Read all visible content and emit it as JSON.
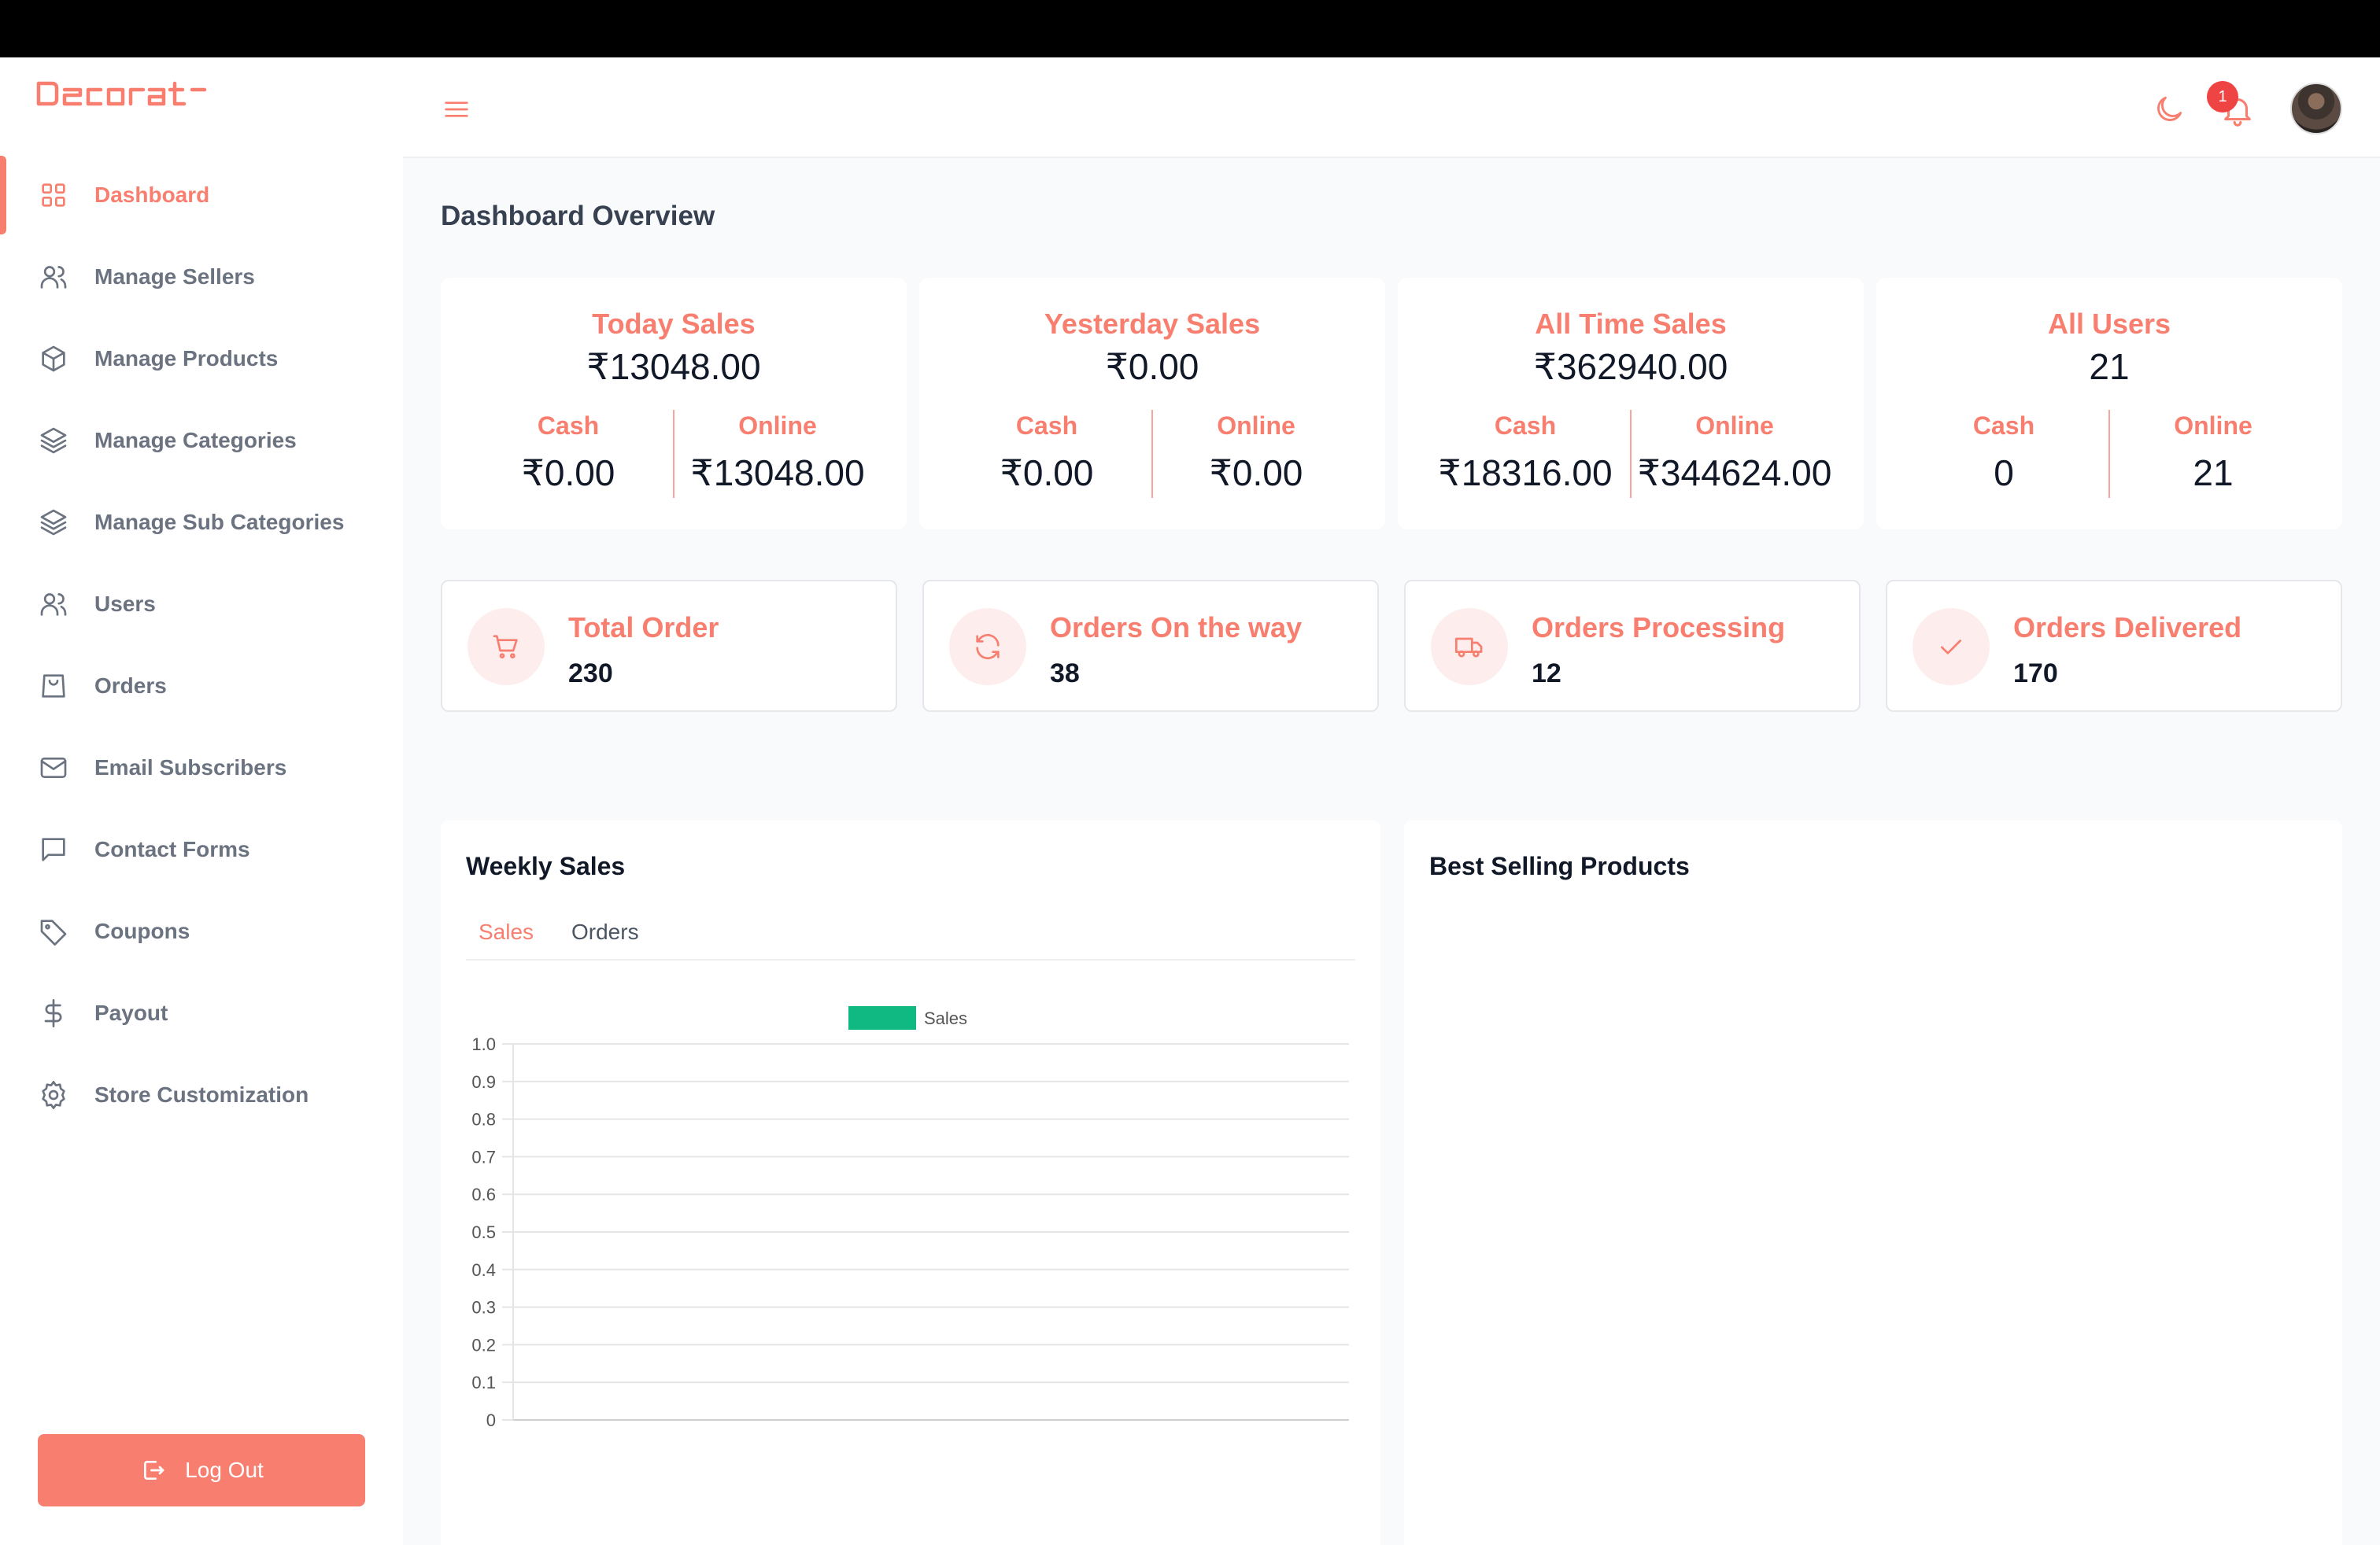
{
  "brand": {
    "name": "Decorat"
  },
  "colors": {
    "accent": "#f87f6f",
    "chart_series": "#10b981",
    "badge": "#ef4444"
  },
  "sidebar": {
    "items": [
      {
        "label": "Dashboard",
        "icon": "grid-icon",
        "active": true
      },
      {
        "label": "Manage Sellers",
        "icon": "users-icon"
      },
      {
        "label": "Manage Products",
        "icon": "cube-icon"
      },
      {
        "label": "Manage Categories",
        "icon": "layers-icon"
      },
      {
        "label": "Manage Sub Categories",
        "icon": "layers-icon"
      },
      {
        "label": "Users",
        "icon": "users-icon"
      },
      {
        "label": "Orders",
        "icon": "shopping-bag-icon"
      },
      {
        "label": "Email Subscribers",
        "icon": "mail-icon"
      },
      {
        "label": "Contact Forms",
        "icon": "message-icon"
      },
      {
        "label": "Coupons",
        "icon": "tag-icon"
      },
      {
        "label": "Payout",
        "icon": "dollar-icon"
      },
      {
        "label": "Store Customization",
        "icon": "settings-icon"
      }
    ],
    "logout_label": "Log Out"
  },
  "header": {
    "notification_count": "1"
  },
  "main": {
    "title": "Dashboard Overview",
    "stats": [
      {
        "title": "Today Sales",
        "value": "₹13048.00",
        "left_label": "Cash",
        "left_value": "₹0.00",
        "right_label": "Online",
        "right_value": "₹13048.00"
      },
      {
        "title": "Yesterday Sales",
        "value": "₹0.00",
        "left_label": "Cash",
        "left_value": "₹0.00",
        "right_label": "Online",
        "right_value": "₹0.00"
      },
      {
        "title": "All Time Sales",
        "value": "₹362940.00",
        "left_label": "Cash",
        "left_value": "₹18316.00",
        "right_label": "Online",
        "right_value": "₹344624.00"
      },
      {
        "title": "All Users",
        "value": "21",
        "left_label": "Cash",
        "left_value": "0",
        "right_label": "Online",
        "right_value": "21"
      }
    ],
    "orders": [
      {
        "title": "Total Order",
        "value": "230",
        "icon": "cart-icon"
      },
      {
        "title": "Orders On the way",
        "value": "38",
        "icon": "refresh-icon"
      },
      {
        "title": "Orders Processing",
        "value": "12",
        "icon": "truck-icon"
      },
      {
        "title": "Orders Delivered",
        "value": "170",
        "icon": "check-icon"
      }
    ],
    "weekly_sales": {
      "title": "Weekly Sales",
      "tabs": [
        "Sales",
        "Orders"
      ],
      "active_tab": "Sales"
    },
    "best_selling": {
      "title": "Best Selling Products"
    }
  },
  "chart_data": {
    "type": "bar",
    "categories": [],
    "series": [
      {
        "name": "Sales",
        "values": []
      }
    ],
    "ylim": [
      0,
      1.0
    ],
    "yticks": [
      "1.0",
      "0.9",
      "0.8",
      "0.7",
      "0.6",
      "0.5",
      "0.4",
      "0.3",
      "0.2",
      "0.1",
      "0"
    ],
    "grid": true,
    "legend": "top-center"
  }
}
